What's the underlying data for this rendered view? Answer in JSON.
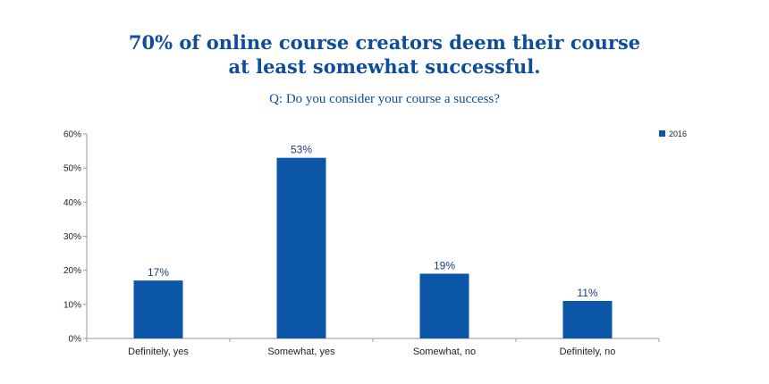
{
  "title_lines": [
    "70% of online course creators deem their course",
    "at least somewhat successful."
  ],
  "subtitle": "Q: Do you consider your course a success?",
  "colors": {
    "bar": "#0b56a6",
    "axis": "#999999",
    "title": "#0d4d99"
  },
  "chart_data": {
    "type": "bar",
    "title": "70% of online course creators deem their course at least somewhat successful.",
    "subtitle": "Q: Do you consider your course a success?",
    "categories": [
      "Definitely, yes",
      "Somewhat, yes",
      "Somewhat, no",
      "Definitely, no"
    ],
    "series": [
      {
        "name": "2016",
        "values": [
          17,
          53,
          19,
          11
        ]
      }
    ],
    "data_labels": [
      "17%",
      "53%",
      "19%",
      "11%"
    ],
    "y_ticks": [
      0,
      10,
      20,
      30,
      40,
      50,
      60
    ],
    "y_tick_labels": [
      "0%",
      "10%",
      "20%",
      "30%",
      "40%",
      "50%",
      "60%"
    ],
    "ylim": [
      0,
      60
    ],
    "xlabel": "",
    "ylabel": "",
    "grid": false,
    "legend": "top-right"
  }
}
